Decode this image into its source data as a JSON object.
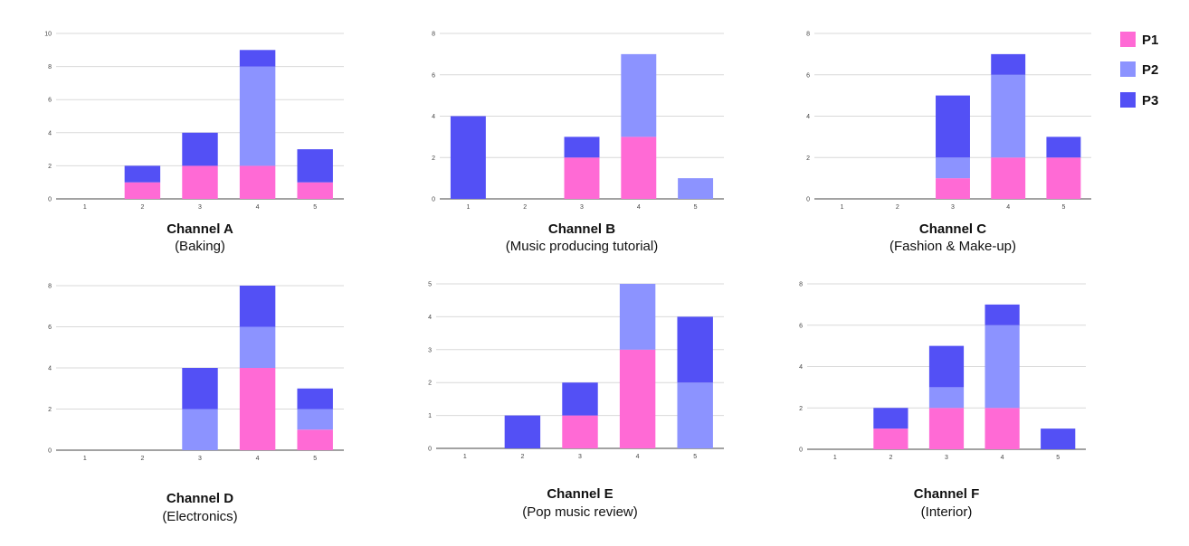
{
  "colors": {
    "P1": "#ff6ad5",
    "P2": "#8c93ff",
    "P3": "#5350f5"
  },
  "legend": [
    "P1",
    "P2",
    "P3"
  ],
  "chart_data": [
    {
      "type": "bar",
      "stacked": true,
      "title": "Channel A",
      "subtitle": "(Baking)",
      "categories": [
        "1",
        "2",
        "3",
        "4",
        "5"
      ],
      "ylim": [
        0,
        10
      ],
      "yticks": [
        0,
        2,
        4,
        6,
        8,
        10
      ],
      "series": [
        {
          "name": "P1",
          "values": [
            0,
            1,
            2,
            2,
            1
          ]
        },
        {
          "name": "P2",
          "values": [
            0,
            0,
            0,
            6,
            0
          ]
        },
        {
          "name": "P3",
          "values": [
            0,
            1,
            2,
            1,
            2
          ]
        }
      ]
    },
    {
      "type": "bar",
      "stacked": true,
      "title": "Channel B",
      "subtitle": "(Music producing tutorial)",
      "categories": [
        "1",
        "2",
        "3",
        "4",
        "5"
      ],
      "ylim": [
        0,
        8
      ],
      "yticks": [
        0,
        2,
        4,
        6,
        8
      ],
      "series": [
        {
          "name": "P1",
          "values": [
            0,
            0,
            2,
            3,
            0
          ]
        },
        {
          "name": "P2",
          "values": [
            0,
            0,
            0,
            4,
            1
          ]
        },
        {
          "name": "P3",
          "values": [
            4,
            0,
            1,
            0,
            0
          ]
        }
      ]
    },
    {
      "type": "bar",
      "stacked": true,
      "title": "Channel C",
      "subtitle": "(Fashion & Make-up)",
      "categories": [
        "1",
        "2",
        "3",
        "4",
        "5"
      ],
      "ylim": [
        0,
        8
      ],
      "yticks": [
        0,
        2,
        4,
        6,
        8
      ],
      "series": [
        {
          "name": "P1",
          "values": [
            0,
            0,
            1,
            2,
            2
          ]
        },
        {
          "name": "P2",
          "values": [
            0,
            0,
            1,
            4,
            0
          ]
        },
        {
          "name": "P3",
          "values": [
            0,
            0,
            3,
            1,
            1
          ]
        }
      ]
    },
    {
      "type": "bar",
      "stacked": true,
      "title": "Channel D",
      "subtitle": "(Electronics)",
      "categories": [
        "1",
        "2",
        "3",
        "4",
        "5"
      ],
      "ylim": [
        0,
        8
      ],
      "yticks": [
        0,
        2,
        4,
        6,
        8
      ],
      "series": [
        {
          "name": "P1",
          "values": [
            0,
            0,
            0,
            4,
            1
          ]
        },
        {
          "name": "P2",
          "values": [
            0,
            0,
            2,
            2,
            1
          ]
        },
        {
          "name": "P3",
          "values": [
            0,
            0,
            2,
            2,
            1
          ]
        }
      ]
    },
    {
      "type": "bar",
      "stacked": true,
      "title": "Channel E",
      "subtitle": "(Pop music review)",
      "categories": [
        "1",
        "2",
        "3",
        "4",
        "5"
      ],
      "ylim": [
        0,
        5
      ],
      "yticks": [
        0,
        1,
        2,
        3,
        4,
        5
      ],
      "series": [
        {
          "name": "P1",
          "values": [
            0,
            0,
            1,
            3,
            0
          ]
        },
        {
          "name": "P2",
          "values": [
            0,
            0,
            0,
            2,
            2
          ]
        },
        {
          "name": "P3",
          "values": [
            0,
            1,
            1,
            0,
            2
          ]
        }
      ]
    },
    {
      "type": "bar",
      "stacked": true,
      "title": "Channel F",
      "subtitle": "(Interior)",
      "categories": [
        "1",
        "2",
        "3",
        "4",
        "5"
      ],
      "ylim": [
        0,
        8
      ],
      "yticks": [
        0,
        2,
        4,
        6,
        8
      ],
      "series": [
        {
          "name": "P1",
          "values": [
            0,
            1,
            2,
            2,
            0
          ]
        },
        {
          "name": "P2",
          "values": [
            0,
            0,
            1,
            4,
            0
          ]
        },
        {
          "name": "P3",
          "values": [
            0,
            1,
            2,
            1,
            1
          ]
        }
      ]
    }
  ]
}
